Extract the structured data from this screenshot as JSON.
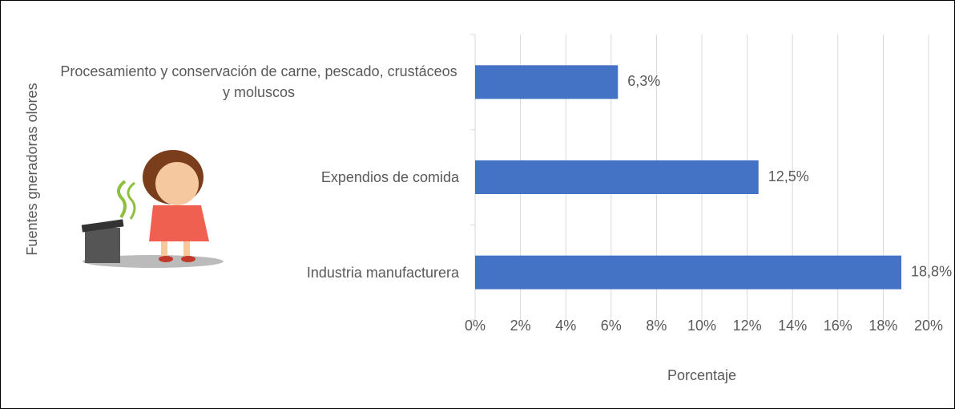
{
  "chart_data": {
    "type": "hbar",
    "x_label": "Porcentaje",
    "y_label": "Fuentes gneradoras olores",
    "categories": [
      "Procesamiento y conservación de carne, pescado, crustáceos y moluscos",
      "Expendios de comida",
      "Industria manufacturera"
    ],
    "values": [
      6.3,
      12.5,
      18.8
    ],
    "value_labels": [
      "6,3%",
      "12,5%",
      "18,8%"
    ],
    "color": "#4472c4",
    "xlim": [
      0,
      20
    ],
    "xticks": [
      {
        "value": 0,
        "label": "0%"
      },
      {
        "value": 2,
        "label": "2%"
      },
      {
        "value": 4,
        "label": "4%"
      },
      {
        "value": 6,
        "label": "6%"
      },
      {
        "value": 8,
        "label": "8%"
      },
      {
        "value": 10,
        "label": "10%"
      },
      {
        "value": 12,
        "label": "12%"
      },
      {
        "value": 14,
        "label": "14%"
      },
      {
        "value": 16,
        "label": "16%"
      },
      {
        "value": 18,
        "label": "18%"
      },
      {
        "value": 20,
        "label": "20%"
      }
    ],
    "grid": true
  }
}
